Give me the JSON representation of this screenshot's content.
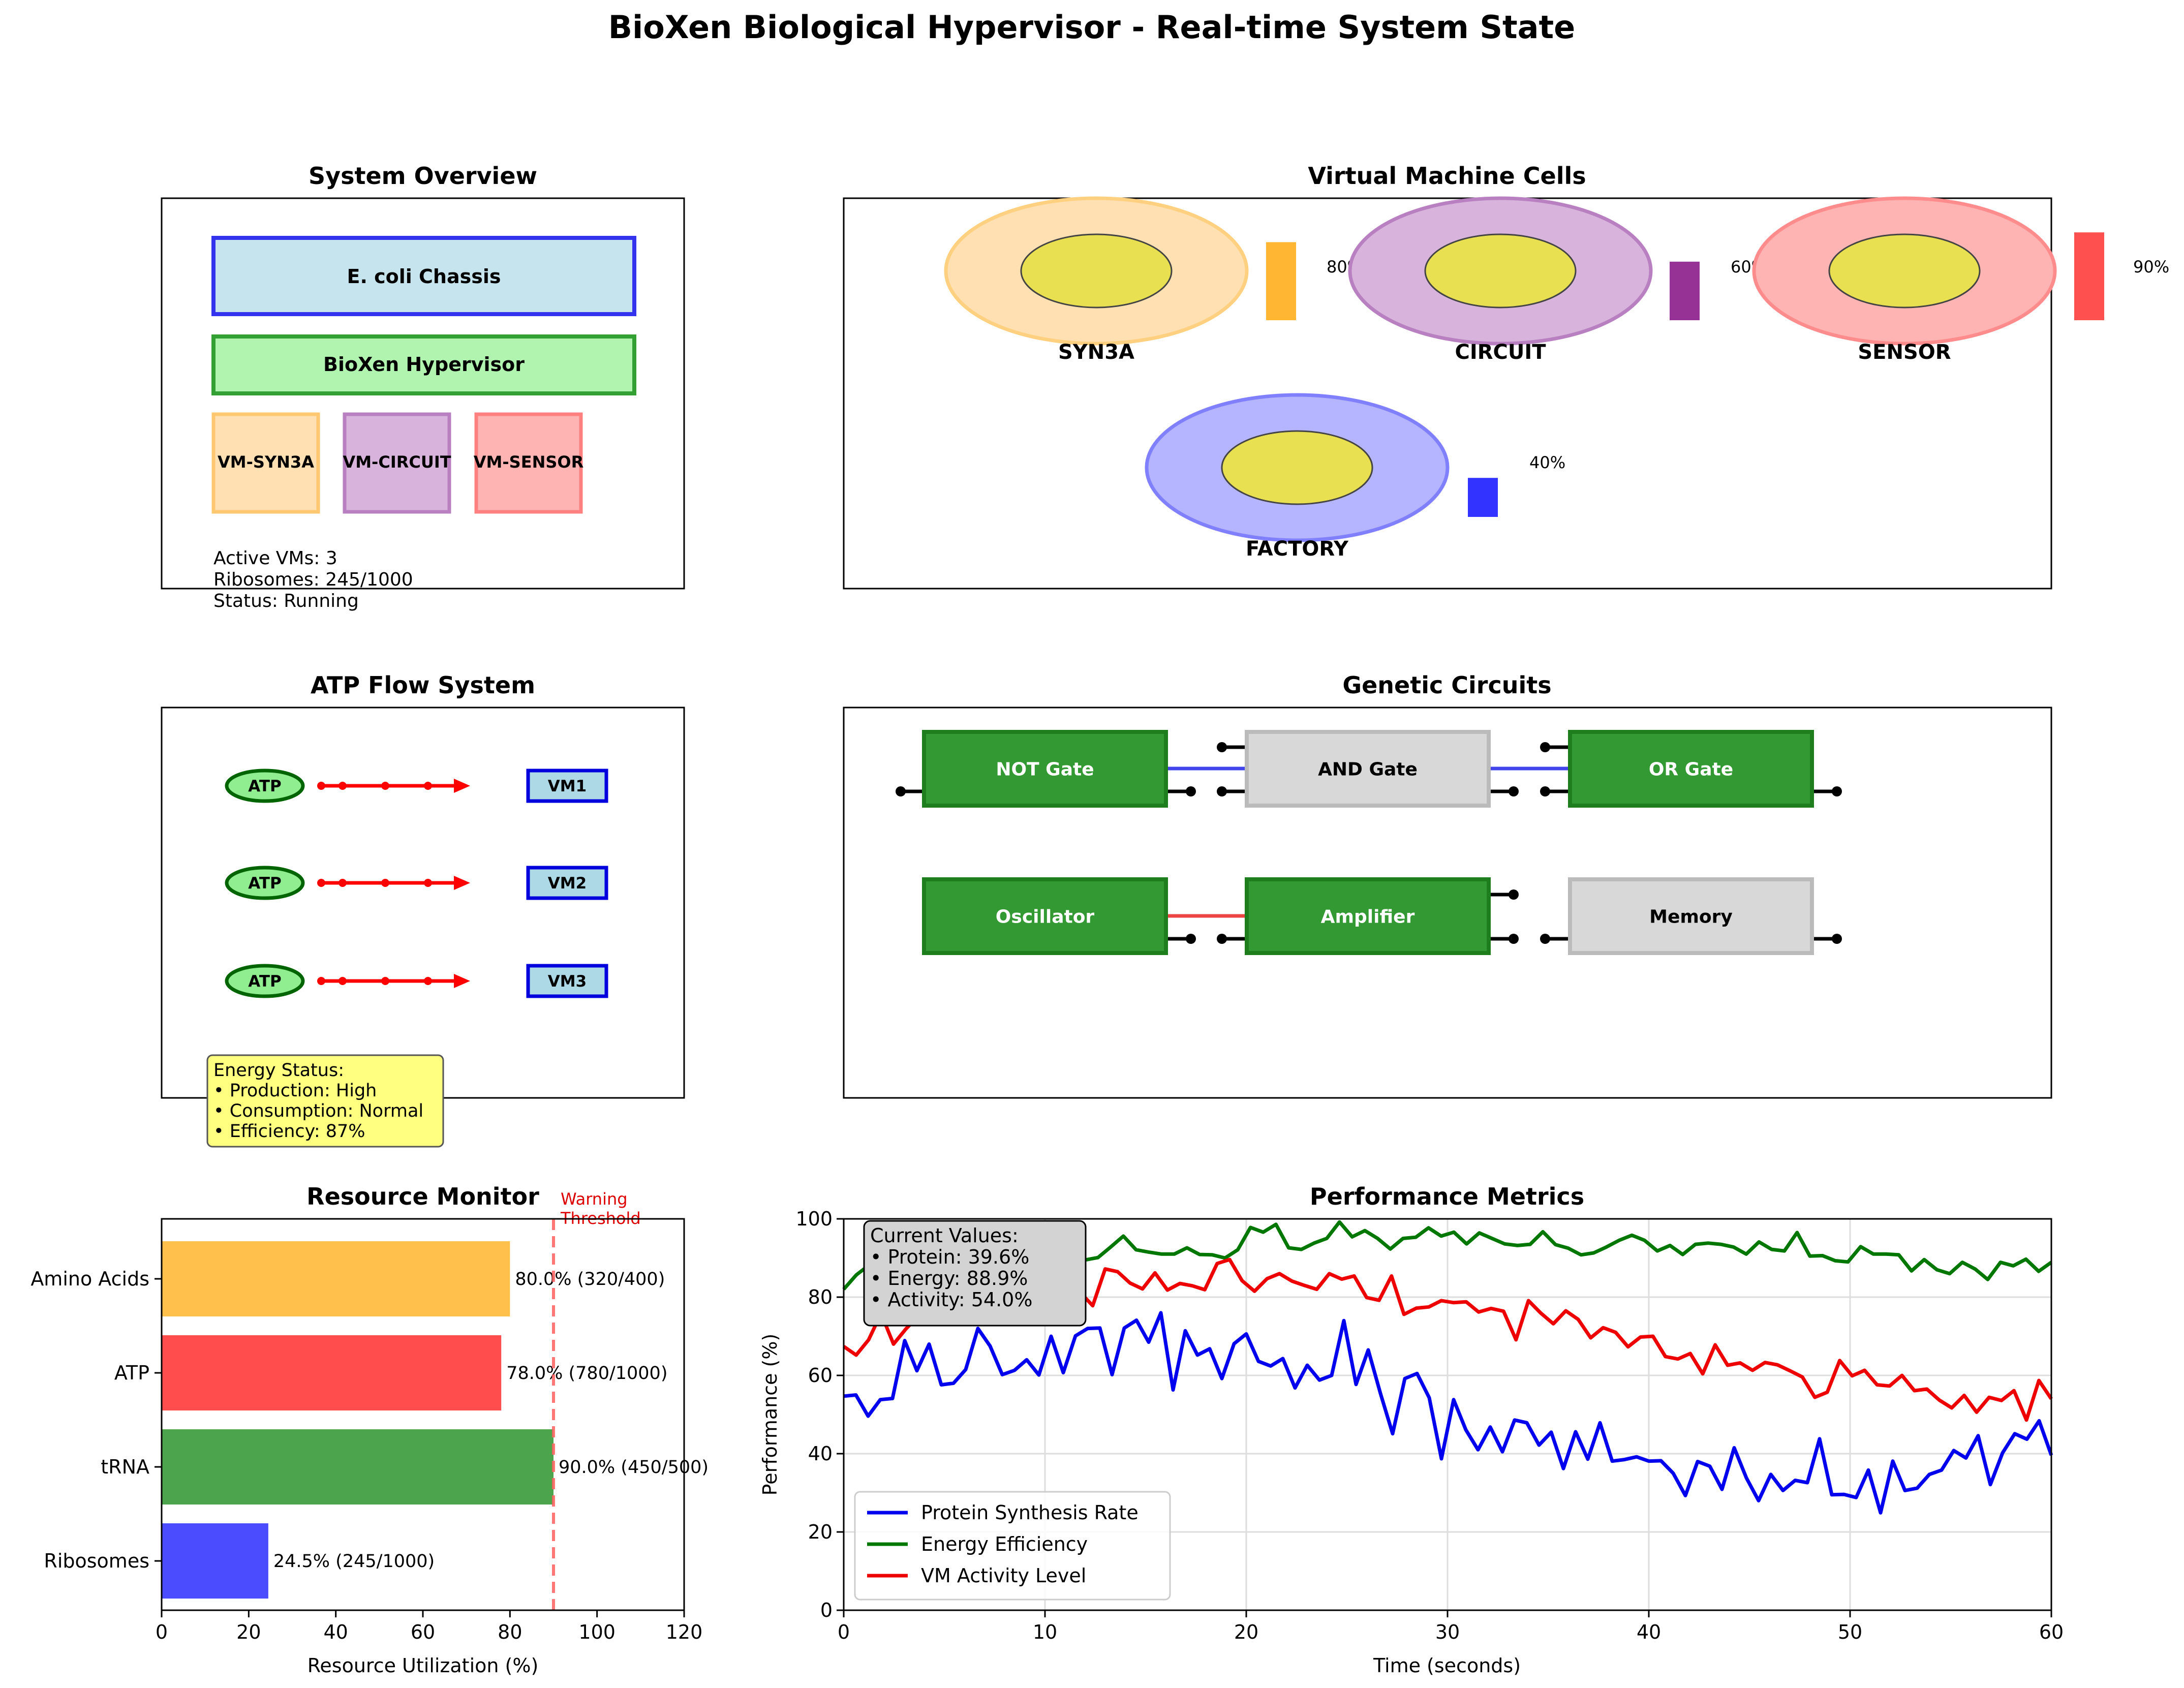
{
  "title": "BioXen Biological Hypervisor - Real-time System State",
  "overview": {
    "title": "System Overview",
    "chassis": "E. coli Chassis",
    "hypervisor": "BioXen Hypervisor",
    "vms": [
      {
        "label": "VM-SYN3A",
        "fill": "#ffe0b2",
        "stroke": "#ffc870"
      },
      {
        "label": "VM-CIRCUIT",
        "fill": "#d8b4dd",
        "stroke": "#b880c0"
      },
      {
        "label": "VM-SENSOR",
        "fill": "#ffb4b4",
        "stroke": "#ff8080"
      }
    ],
    "status_lines": [
      "Active VMs: 3",
      "Ribosomes: 245/1000",
      "Status: Running"
    ],
    "colors": {
      "chassis_fill": "#c5e4ed",
      "chassis_stroke": "#3333ee",
      "hyper_fill": "#b0f4b0",
      "hyper_stroke": "#33a033"
    }
  },
  "vm_cells": {
    "title": "Virtual Machine Cells",
    "cells": [
      {
        "name": "SYN3A",
        "usage": 0.8,
        "usage_label": "80%",
        "color": "#ffb733",
        "membrane": "#ffe0b2",
        "membrane_stroke": "#ffd080"
      },
      {
        "name": "CIRCUIT",
        "usage": 0.6,
        "usage_label": "60%",
        "color": "#963296",
        "membrane": "#d8b4dd",
        "membrane_stroke": "#b880c0"
      },
      {
        "name": "SENSOR",
        "usage": 0.9,
        "usage_label": "90%",
        "color": "#ff5050",
        "membrane": "#ffb4b4",
        "membrane_stroke": "#ff8c8c"
      },
      {
        "name": "FACTORY",
        "usage": 0.4,
        "usage_label": "40%",
        "color": "#3333ff",
        "membrane": "#b4b4ff",
        "membrane_stroke": "#8080ff"
      }
    ],
    "nucleus_color": "#e8e050"
  },
  "atp": {
    "title": "ATP Flow System",
    "rows": [
      {
        "source": "ATP",
        "target": "VM1"
      },
      {
        "source": "ATP",
        "target": "VM2"
      },
      {
        "source": "ATP",
        "target": "VM3"
      }
    ],
    "energy_lines": [
      "Energy Status:",
      "• Production: High",
      "• Consumption: Normal",
      "• Efficiency: 87%"
    ],
    "colors": {
      "atp_fill": "#90ee90",
      "atp_stroke": "#006400",
      "vm_fill": "#add8e6",
      "vm_stroke": "#0000dd",
      "arrow": "#ff0000",
      "box": "#ffff80"
    }
  },
  "circuits": {
    "title": "Genetic Circuits",
    "gates": [
      {
        "label": "NOT Gate",
        "active": true
      },
      {
        "label": "AND Gate",
        "active": false
      },
      {
        "label": "OR Gate",
        "active": true
      },
      {
        "label": "Oscillator",
        "active": true
      },
      {
        "label": "Amplifier",
        "active": true
      },
      {
        "label": "Memory",
        "active": false
      }
    ],
    "colors": {
      "active": "#339933",
      "inactive": "#d8d8d8",
      "link_blue": "#4444ee",
      "link_red": "#ee4444"
    }
  },
  "resources": {
    "title": "Resource Monitor",
    "xlabel": "Resource Utilization (%)",
    "threshold": 90,
    "threshold_label_1": "Warning",
    "threshold_label_2": "Threshold",
    "xticks": [
      "0",
      "20",
      "40",
      "60",
      "80",
      "100",
      "120"
    ]
  },
  "performance": {
    "title": "Performance Metrics",
    "xlabel": "Time (seconds)",
    "ylabel": "Performance (%)",
    "xticks": [
      "0",
      "10",
      "20",
      "30",
      "40",
      "50",
      "60"
    ],
    "yticks": [
      "0",
      "20",
      "40",
      "60",
      "80",
      "100"
    ],
    "current_lines": [
      "Current Values:",
      "• Protein: 39.6%",
      "• Energy: 88.9%",
      "• Activity: 54.0%"
    ]
  },
  "chart_data": [
    {
      "type": "bar",
      "orientation": "horizontal",
      "categories": [
        "Amino Acids",
        "ATP",
        "tRNA",
        "Ribosomes"
      ],
      "values": [
        80.0,
        78.0,
        90.0,
        24.5
      ],
      "value_labels": [
        "80.0% (320/400)",
        "78.0% (780/1000)",
        "90.0% (450/500)",
        "24.5% (245/1000)"
      ],
      "colors": [
        "#ffb733",
        "#ff3333",
        "#339933",
        "#3333ff"
      ],
      "xlim": [
        0,
        120
      ],
      "threshold": 90,
      "grid": false
    },
    {
      "type": "line",
      "xlim": [
        0,
        60
      ],
      "ylim": [
        0,
        100
      ],
      "grid": true,
      "legend": "lower-left",
      "series": [
        {
          "name": "Protein Synthesis Rate",
          "color": "#0000ee",
          "values": [
            54.7,
            55.0,
            49.6,
            53.8,
            54.1,
            68.9,
            61.2,
            68.0,
            57.6,
            58.0,
            61.5,
            72.0,
            67.5,
            60.2,
            61.3,
            64.0,
            60.1,
            70.0,
            60.7,
            70.1,
            72.0,
            72.1,
            60.2,
            72.1,
            74.1,
            68.5,
            76.0,
            56.3,
            71.4,
            65.2,
            66.8,
            59.2,
            68.1,
            70.6,
            63.6,
            62.4,
            64.3,
            56.8,
            62.6,
            58.8,
            60.0,
            74.0,
            57.7,
            66.5,
            55.4,
            45.1,
            59.2,
            60.5,
            54.3,
            38.7,
            53.8,
            46.1,
            41.0,
            46.8,
            40.5,
            48.6,
            47.9,
            42.2,
            45.5,
            36.2,
            45.6,
            38.6,
            47.9,
            38.1,
            38.5,
            39.2,
            38.1,
            38.2,
            35.0,
            29.3,
            38.0,
            36.8,
            30.9,
            41.5,
            33.8,
            28.0,
            34.7,
            30.6,
            33.2,
            32.6,
            43.8,
            29.5,
            29.6,
            28.8,
            35.8,
            24.9,
            38.1,
            30.6,
            31.2,
            34.7,
            35.8,
            40.8,
            38.9,
            44.6,
            32.1,
            40.2,
            45.1,
            43.7,
            48.4,
            39.6
          ]
        },
        {
          "name": "Energy Efficiency",
          "color": "#007700",
          "values": [
            82.0,
            85.7,
            88.2,
            89.9,
            88.0,
            85.0,
            87.8,
            86.1,
            88.5,
            90.0,
            87.5,
            88.1,
            87.0,
            88.6,
            90.2,
            91.8,
            92.0,
            93.0,
            89.5,
            89.5,
            90.1,
            92.8,
            95.6,
            92.1,
            91.5,
            91.0,
            91.0,
            92.6,
            90.9,
            90.8,
            90.0,
            92.1,
            97.8,
            96.6,
            98.6,
            92.6,
            92.2,
            93.8,
            95.0,
            99.2,
            95.4,
            97.0,
            95.0,
            92.3,
            95.0,
            95.3,
            97.7,
            95.6,
            96.6,
            93.6,
            96.4,
            95.0,
            93.6,
            93.2,
            93.5,
            96.7,
            93.4,
            92.5,
            90.8,
            91.3,
            92.8,
            94.5,
            95.8,
            94.5,
            91.8,
            93.2,
            90.9,
            93.5,
            93.8,
            93.5,
            92.8,
            91.0,
            94.1,
            92.2,
            91.8,
            96.5,
            90.5,
            90.6,
            89.3,
            89.0,
            92.9,
            91.0,
            91.0,
            90.8,
            86.7,
            89.6,
            87.0,
            86.0,
            88.9,
            87.2,
            84.5,
            88.9,
            88.0,
            89.7,
            86.6,
            88.9
          ]
        },
        {
          "name": "VM Activity Level",
          "color": "#ee0000",
          "values": [
            67.4,
            65.2,
            69.1,
            75.8,
            68.0,
            71.9,
            75.2,
            80.4,
            82.1,
            74.2,
            80.3,
            80.1,
            81.4,
            87.0,
            79.4,
            79.6,
            84.3,
            84.5,
            82.1,
            81.2,
            77.8,
            87.2,
            86.5,
            83.6,
            82.1,
            86.2,
            81.8,
            83.5,
            82.9,
            81.9,
            88.6,
            89.6,
            84.2,
            81.5,
            84.7,
            86.0,
            84.1,
            83.0,
            82.0,
            86.0,
            84.6,
            85.4,
            79.9,
            79.2,
            85.4,
            75.6,
            77.2,
            77.5,
            79.1,
            78.6,
            78.8,
            76.2,
            77.1,
            76.4,
            69.1,
            79.1,
            75.9,
            73.2,
            76.5,
            74.3,
            69.6,
            72.2,
            71.0,
            67.3,
            69.8,
            70.0,
            64.8,
            64.2,
            65.6,
            60.4,
            67.8,
            62.6,
            63.2,
            61.3,
            63.3,
            62.7,
            61.2,
            59.6,
            54.4,
            55.7,
            63.8,
            59.9,
            61.3,
            57.6,
            57.3,
            60.0,
            56.1,
            56.5,
            53.7,
            51.7,
            54.9,
            50.6,
            54.4,
            53.6,
            56.1,
            48.6,
            58.7,
            54.0
          ]
        }
      ]
    }
  ]
}
